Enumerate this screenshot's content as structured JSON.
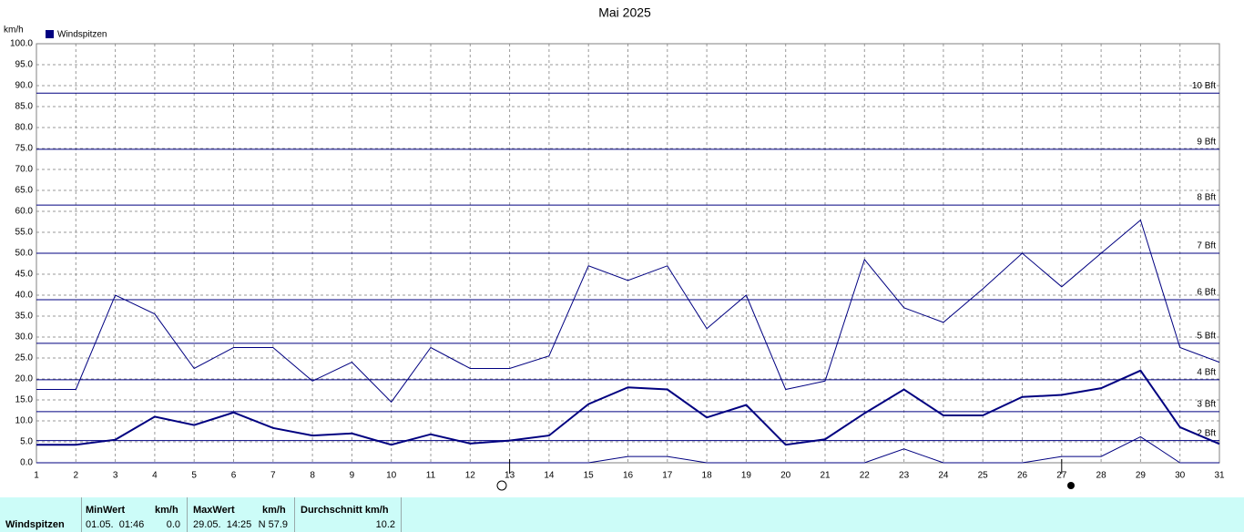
{
  "chart_data": {
    "type": "line",
    "title": "Mai 2025",
    "y_label": "km/h",
    "x": [
      1,
      2,
      3,
      4,
      5,
      6,
      7,
      8,
      9,
      10,
      11,
      12,
      13,
      14,
      15,
      16,
      17,
      18,
      19,
      20,
      21,
      22,
      23,
      24,
      25,
      26,
      27,
      28,
      29,
      30,
      31
    ],
    "xlim": [
      1,
      31
    ],
    "xticks": [
      1,
      2,
      3,
      4,
      5,
      6,
      7,
      8,
      9,
      10,
      11,
      12,
      13,
      14,
      15,
      16,
      17,
      18,
      19,
      20,
      21,
      22,
      23,
      24,
      25,
      26,
      27,
      28,
      29,
      30,
      31
    ],
    "ylim": [
      0,
      100
    ],
    "yticks": [
      {
        "value": 0,
        "label": "0.0"
      },
      {
        "value": 5,
        "label": "5.0"
      },
      {
        "value": 10,
        "label": "10.0"
      },
      {
        "value": 15,
        "label": "15.0"
      },
      {
        "value": 20,
        "label": "20.0"
      },
      {
        "value": 25,
        "label": "25.0"
      },
      {
        "value": 30,
        "label": "30.0"
      },
      {
        "value": 35,
        "label": "35.0"
      },
      {
        "value": 40,
        "label": "40.0"
      },
      {
        "value": 45,
        "label": "45.0"
      },
      {
        "value": 50,
        "label": "50.0"
      },
      {
        "value": 55,
        "label": "55.0"
      },
      {
        "value": 60,
        "label": "60.0"
      },
      {
        "value": 65,
        "label": "65.0"
      },
      {
        "value": 70,
        "label": "70.0"
      },
      {
        "value": 75,
        "label": "75.0"
      },
      {
        "value": 80,
        "label": "80.0"
      },
      {
        "value": 85,
        "label": "85.0"
      },
      {
        "value": 90,
        "label": "90.0"
      },
      {
        "value": 95,
        "label": "95.0"
      },
      {
        "value": 100,
        "label": "100.0"
      }
    ],
    "grid": true,
    "series": [
      {
        "name": "Windspitzen",
        "color": "#000080",
        "width": 2,
        "values": [
          4.3,
          4.3,
          5.5,
          11,
          9,
          12,
          8.3,
          6.5,
          7,
          4.3,
          6.8,
          4.6,
          5.3,
          6.5,
          14,
          18,
          17.5,
          10.8,
          13.8,
          4.3,
          5.6,
          11.8,
          17.5,
          11.3,
          11.3,
          15.7,
          16.2,
          17.8,
          22,
          8.5,
          4.5
        ]
      },
      {
        "color": "#000080",
        "width": 1,
        "values": [
          17.5,
          17.5,
          40,
          35.5,
          22.5,
          27.5,
          27.5,
          19.5,
          24,
          14.5,
          27.5,
          22.5,
          22.5,
          25.5,
          47,
          43.5,
          47,
          32,
          40,
          17.5,
          19.5,
          48.5,
          37,
          33.5,
          41.5,
          50,
          42,
          50,
          57.9,
          27.5,
          24
        ]
      },
      {
        "color": "#000080",
        "width": 1,
        "values": [
          0,
          0,
          0,
          0,
          0,
          0,
          0,
          0,
          0,
          0,
          0,
          0,
          0,
          0,
          0,
          1.5,
          1.5,
          0,
          0,
          0,
          0,
          0,
          3.3,
          0,
          0,
          0,
          1.5,
          1.5,
          6.2,
          0,
          0
        ]
      }
    ],
    "reference_lines": [
      {
        "label": "10 Bft",
        "value": 88.2
      },
      {
        "label": "9 Bft",
        "value": 74.8
      },
      {
        "label": "8 Bft",
        "value": 61.5
      },
      {
        "label": "7 Bft",
        "value": 50
      },
      {
        "label": "6 Bft",
        "value": 38.9
      },
      {
        "label": "5 Bft",
        "value": 28.5
      },
      {
        "label": "4 Bft",
        "value": 19.8
      },
      {
        "label": "3 Bft",
        "value": 12.2
      },
      {
        "label": "2 Bft",
        "value": 5.3
      }
    ]
  },
  "table": {
    "header": [
      "MinWert",
      "km/h",
      "MaxWert",
      "km/h",
      "Durchschnitt km/h"
    ],
    "row_label": "Windspitzen",
    "row": [
      "01.05.  01:46",
      "0.0",
      "29.05.  14:25",
      "N 57.9",
      "10.2"
    ]
  }
}
